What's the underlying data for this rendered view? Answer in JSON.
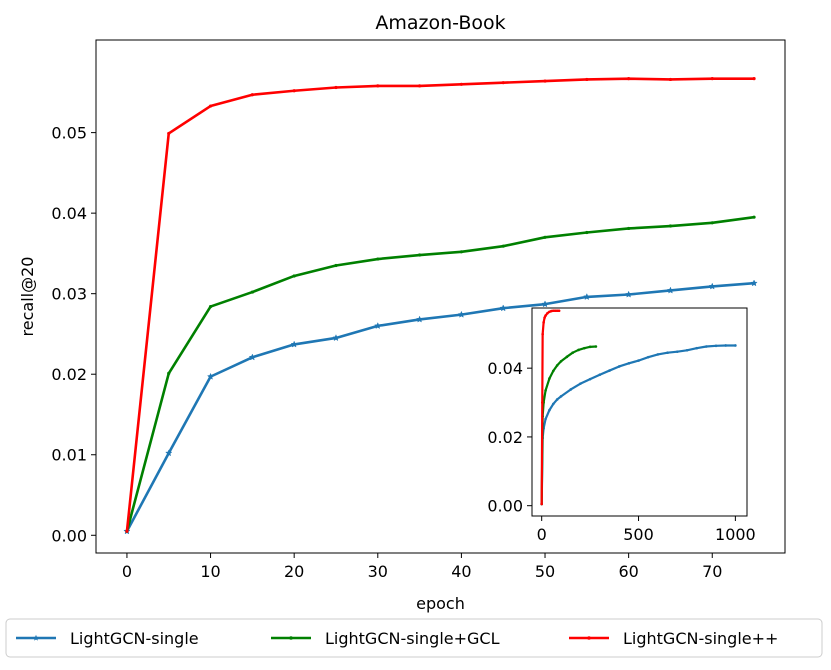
{
  "chart_data": [
    {
      "type": "line",
      "title": "Amazon-Book",
      "xlabel": "epoch",
      "ylabel": "recall@20",
      "xlim": [
        -3.7,
        78.7
      ],
      "ylim": [
        -0.0022,
        0.0615
      ],
      "xticks": [
        0,
        10,
        20,
        30,
        40,
        50,
        60,
        70
      ],
      "yticks": [
        0.0,
        0.01,
        0.02,
        0.03,
        0.04,
        0.05
      ],
      "ytick_labels": [
        "0.00",
        "0.01",
        "0.02",
        "0.03",
        "0.04",
        "0.05"
      ],
      "grid": false,
      "legend_position": "bottom, outside plot",
      "series": [
        {
          "name": "LightGCN-single",
          "color": "#1f77b4",
          "marker": "star",
          "x": [
            0,
            5,
            10,
            15,
            20,
            25,
            30,
            35,
            40,
            45,
            50,
            55,
            60,
            65,
            70,
            75
          ],
          "y": [
            0.0005,
            0.0102,
            0.0197,
            0.0221,
            0.0237,
            0.0245,
            0.026,
            0.0268,
            0.0274,
            0.0282,
            0.0287,
            0.0296,
            0.0299,
            0.0304,
            0.0309,
            0.0313
          ]
        },
        {
          "name": "LightGCN-single+GCL",
          "color": "#008000",
          "marker": "dot",
          "x": [
            0,
            5,
            10,
            15,
            20,
            25,
            30,
            35,
            40,
            45,
            50,
            55,
            60,
            65,
            70,
            75
          ],
          "y": [
            0.0005,
            0.0201,
            0.0284,
            0.0302,
            0.0322,
            0.0335,
            0.0343,
            0.0348,
            0.0352,
            0.0359,
            0.037,
            0.0376,
            0.0381,
            0.0384,
            0.0388,
            0.0395
          ]
        },
        {
          "name": "LightGCN-single++",
          "color": "#ff0000",
          "marker": "dot",
          "x": [
            0,
            5,
            10,
            15,
            20,
            25,
            30,
            35,
            40,
            45,
            50,
            55,
            60,
            65,
            70,
            75
          ],
          "y": [
            0.0005,
            0.0499,
            0.0533,
            0.0547,
            0.0552,
            0.0556,
            0.0558,
            0.0558,
            0.056,
            0.0562,
            0.0564,
            0.0566,
            0.0567,
            0.0566,
            0.0567,
            0.0567
          ]
        }
      ]
    },
    {
      "type": "line",
      "title": "",
      "xlabel": "",
      "ylabel": "",
      "xlim": [
        -50,
        1060
      ],
      "ylim": [
        -0.003,
        0.0575
      ],
      "xticks": [
        0,
        500,
        1000
      ],
      "yticks": [
        0.0,
        0.02,
        0.04
      ],
      "ytick_labels": [
        "0.00",
        "0.02",
        "0.04"
      ],
      "grid": false,
      "position": "inset, lower-right",
      "series": [
        {
          "name": "LightGCN-single",
          "color": "#1f77b4",
          "x": [
            0,
            5,
            10,
            20,
            40,
            60,
            80,
            100,
            150,
            200,
            250,
            300,
            350,
            400,
            450,
            500,
            550,
            600,
            650,
            700,
            750,
            800,
            850,
            900,
            950,
            1000
          ],
          "y": [
            0.0005,
            0.0197,
            0.0225,
            0.0252,
            0.0278,
            0.0296,
            0.0309,
            0.0318,
            0.0338,
            0.0355,
            0.0368,
            0.0381,
            0.0393,
            0.0405,
            0.0414,
            0.0422,
            0.0432,
            0.044,
            0.0445,
            0.0448,
            0.0452,
            0.0458,
            0.0463,
            0.0465,
            0.0466,
            0.0466
          ]
        },
        {
          "name": "LightGCN-single+GCL",
          "color": "#008000",
          "x": [
            0,
            5,
            10,
            20,
            40,
            60,
            80,
            100,
            130,
            160,
            190,
            220,
            250,
            280
          ],
          "y": [
            0.0005,
            0.026,
            0.03,
            0.0335,
            0.037,
            0.0392,
            0.0408,
            0.042,
            0.0433,
            0.0445,
            0.0453,
            0.0458,
            0.0462,
            0.0463
          ]
        },
        {
          "name": "LightGCN-single++",
          "color": "#ff0000",
          "x": [
            0,
            3,
            5,
            10,
            15,
            20,
            30,
            40,
            50,
            60,
            70,
            80,
            90
          ],
          "y": [
            0.0005,
            0.03,
            0.0499,
            0.0533,
            0.0547,
            0.0553,
            0.056,
            0.0564,
            0.0566,
            0.0567,
            0.0567,
            0.0567,
            0.0567
          ]
        }
      ]
    }
  ]
}
